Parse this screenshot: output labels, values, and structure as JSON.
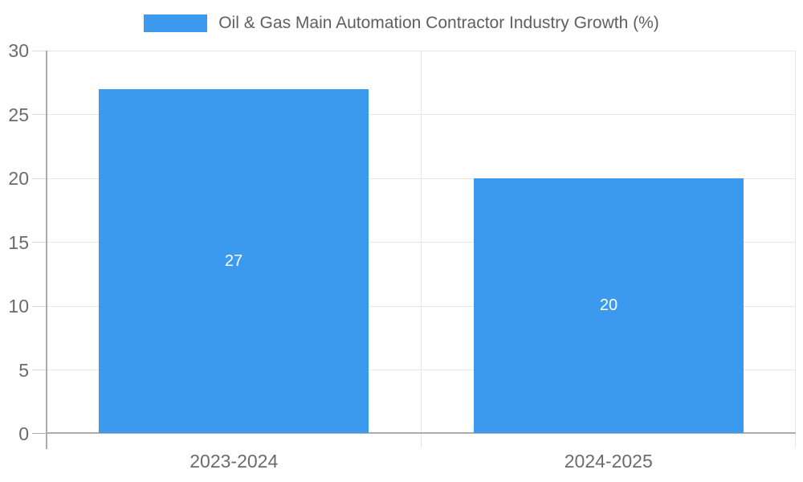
{
  "legend": {
    "swatch_color": "#3B99EE",
    "label": "Oil & Gas Main Automation Contractor Industry Growth (%)"
  },
  "chart_data": {
    "type": "bar",
    "title": "Oil & Gas Main Automation Contractor Industry Growth (%)",
    "categories": [
      "2023-2024",
      "2024-2025"
    ],
    "values": [
      27,
      20
    ],
    "data_labels": [
      "27",
      "20"
    ],
    "xlabel": "",
    "ylabel": "",
    "ylim": [
      0,
      30
    ],
    "yticks": [
      0,
      5,
      10,
      15,
      20,
      25,
      30
    ],
    "grid": true,
    "legend_position": "top-center",
    "bar_color": "#3B99EE",
    "data_label_color": "#FFFFFF"
  },
  "colors": {
    "background": "#FFFFFF",
    "gridline": "#E7E7E7",
    "tick": "#DADADA",
    "axis_line": "#ACACAC",
    "axis_label": "#6B6B6B",
    "legend_text": "#5F5F5F"
  }
}
